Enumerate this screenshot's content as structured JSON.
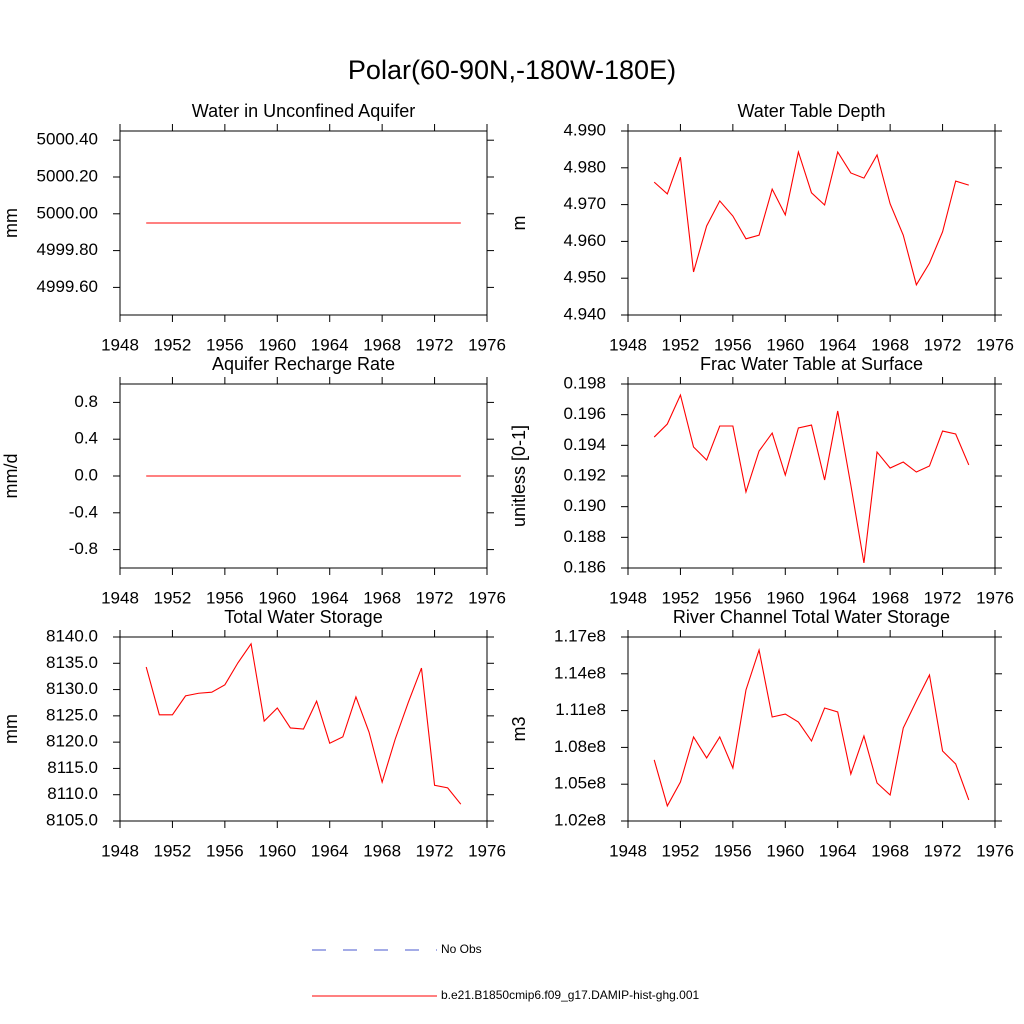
{
  "title": "Polar(60-90N,-180W-180E)",
  "legend": [
    {
      "name": "No Obs",
      "color": "#4a5acf",
      "line_style": "dashed"
    },
    {
      "name": "b.e21.B1850cmip6.f09_g17.DAMIP-hist-ghg.001",
      "color": "#ff0000",
      "line_style": "solid"
    }
  ],
  "chart_data": [
    {
      "type": "line",
      "title": "Water in Unconfined Aquifer",
      "y_label": "mm",
      "color": "#ff0000",
      "x": [
        1950,
        1951,
        1952,
        1953,
        1954,
        1955,
        1956,
        1957,
        1958,
        1959,
        1960,
        1961,
        1962,
        1963,
        1964,
        1965,
        1966,
        1967,
        1968,
        1969,
        1970,
        1971,
        1972,
        1973,
        1974
      ],
      "values": [
        4999.95,
        4999.95,
        4999.95,
        4999.95,
        4999.95,
        4999.95,
        4999.95,
        4999.95,
        4999.95,
        4999.95,
        4999.95,
        4999.95,
        4999.95,
        4999.95,
        4999.95,
        4999.95,
        4999.95,
        4999.95,
        4999.95,
        4999.95,
        4999.95,
        4999.95,
        4999.95,
        4999.95,
        4999.95
      ],
      "xlim": [
        1948,
        1976
      ],
      "xticks": [
        1948,
        1952,
        1956,
        1960,
        1964,
        1968,
        1972,
        1976
      ],
      "ylim": [
        4999.45,
        5000.45
      ],
      "yticks": [
        {
          "value": 4999.6,
          "label": "4999.60"
        },
        {
          "value": 4999.8,
          "label": "4999.80"
        },
        {
          "value": 5000,
          "label": "5000.00"
        },
        {
          "value": 5000.2,
          "label": "5000.20"
        },
        {
          "value": 5000.4,
          "label": "5000.40"
        }
      ]
    },
    {
      "type": "line",
      "title": "Water Table Depth",
      "y_label": "m",
      "color": "#ff0000",
      "x": [
        1950,
        1951,
        1952,
        1953,
        1954,
        1955,
        1956,
        1957,
        1958,
        1959,
        1960,
        1961,
        1962,
        1963,
        1964,
        1965,
        1966,
        1967,
        1968,
        1969,
        1970,
        1971,
        1972,
        1973,
        1974
      ],
      "values": [
        4.9761,
        4.9729,
        4.9829,
        4.9517,
        4.9642,
        4.971,
        4.9669,
        4.9607,
        4.9617,
        4.9742,
        4.9672,
        4.9843,
        4.9732,
        4.9699,
        4.9843,
        4.9786,
        4.9772,
        4.9835,
        4.9702,
        4.9617,
        4.9482,
        4.9541,
        4.9626,
        4.9764,
        4.9753
      ],
      "xlim": [
        1948,
        1976
      ],
      "xticks": [
        1948,
        1952,
        1956,
        1960,
        1964,
        1968,
        1972,
        1976
      ],
      "ylim": [
        4.94,
        4.99
      ],
      "yticks": [
        {
          "value": 4.94,
          "label": "4.940"
        },
        {
          "value": 4.95,
          "label": "4.950"
        },
        {
          "value": 4.96,
          "label": "4.960"
        },
        {
          "value": 4.97,
          "label": "4.970"
        },
        {
          "value": 4.98,
          "label": "4.980"
        },
        {
          "value": 4.99,
          "label": "4.990"
        }
      ]
    },
    {
      "type": "line",
      "title": "Aquifer Recharge Rate",
      "y_label": "mm/d",
      "color": "#ff0000",
      "x": [
        1950,
        1951,
        1952,
        1953,
        1954,
        1955,
        1956,
        1957,
        1958,
        1959,
        1960,
        1961,
        1962,
        1963,
        1964,
        1965,
        1966,
        1967,
        1968,
        1969,
        1970,
        1971,
        1972,
        1973,
        1974
      ],
      "values": [
        0,
        0,
        0,
        0,
        0,
        0,
        0,
        0,
        0,
        0,
        0,
        0,
        0,
        0,
        0,
        0,
        0,
        0,
        0,
        0,
        0,
        0,
        0,
        0,
        0
      ],
      "xlim": [
        1948,
        1976
      ],
      "xticks": [
        1948,
        1952,
        1956,
        1960,
        1964,
        1968,
        1972,
        1976
      ],
      "ylim": [
        -1,
        1
      ],
      "yticks": [
        -0.8,
        -0.4,
        {
          "value": 0,
          "label": "0.0"
        },
        0.4,
        0.8
      ]
    },
    {
      "type": "line",
      "title": "Frac Water Table at Surface",
      "y_label": "unitless [0-1]",
      "color": "#ff0000",
      "x": [
        1950,
        1951,
        1952,
        1953,
        1954,
        1955,
        1956,
        1957,
        1958,
        1959,
        1960,
        1961,
        1962,
        1963,
        1964,
        1965,
        1966,
        1967,
        1968,
        1969,
        1970,
        1971,
        1972,
        1973,
        1974
      ],
      "values": [
        0.19454,
        0.19539,
        0.19728,
        0.19389,
        0.19304,
        0.19526,
        0.19526,
        0.19096,
        0.19363,
        0.1948,
        0.19206,
        0.19513,
        0.19532,
        0.19174,
        0.19624,
        0.19141,
        0.18633,
        0.19356,
        0.19252,
        0.19291,
        0.19226,
        0.19265,
        0.19493,
        0.19474,
        0.19272
      ],
      "xlim": [
        1948,
        1976
      ],
      "xticks": [
        1948,
        1952,
        1956,
        1960,
        1964,
        1968,
        1972,
        1976
      ],
      "ylim": [
        0.186,
        0.198
      ],
      "yticks": [
        0.186,
        0.188,
        {
          "value": 0.19,
          "label": "0.190"
        },
        0.192,
        0.194,
        0.196,
        0.198
      ]
    },
    {
      "type": "line",
      "title": "Total Water Storage",
      "y_label": "mm",
      "color": "#ff0000",
      "x": [
        1950,
        1951,
        1952,
        1953,
        1954,
        1955,
        1956,
        1957,
        1958,
        1959,
        1960,
        1961,
        1962,
        1963,
        1964,
        1965,
        1966,
        1967,
        1968,
        1969,
        1970,
        1971,
        1972,
        1973,
        1974
      ],
      "values": [
        8134.3,
        8125.2,
        8125.2,
        8128.8,
        8129.3,
        8129.5,
        8130.9,
        8135.1,
        8138.7,
        8124.0,
        8126.5,
        8122.7,
        8122.5,
        8127.8,
        8119.8,
        8121.0,
        8128.6,
        8121.9,
        8112.4,
        8120.6,
        8127.6,
        8134.1,
        8111.8,
        8111.3,
        8108.2
      ],
      "xlim": [
        1948,
        1976
      ],
      "xticks": [
        1948,
        1952,
        1956,
        1960,
        1964,
        1968,
        1972,
        1976
      ],
      "ylim": [
        8105,
        8140
      ],
      "yticks": [
        {
          "value": 8105,
          "label": "8105.0"
        },
        {
          "value": 8110,
          "label": "8110.0"
        },
        {
          "value": 8115,
          "label": "8115.0"
        },
        {
          "value": 8120,
          "label": "8120.0"
        },
        {
          "value": 8125,
          "label": "8125.0"
        },
        {
          "value": 8130,
          "label": "8130.0"
        },
        {
          "value": 8135,
          "label": "8135.0"
        },
        {
          "value": 8140,
          "label": "8140.0"
        }
      ]
    },
    {
      "type": "line",
      "title": "River Channel Total Water Storage",
      "y_label": "m3",
      "color": "#ff0000",
      "x": [
        1950,
        1951,
        1952,
        1953,
        1954,
        1955,
        1956,
        1957,
        1958,
        1959,
        1960,
        1961,
        1962,
        1963,
        1964,
        1965,
        1966,
        1967,
        1968,
        1969,
        1970,
        1971,
        1972,
        1973,
        1974
      ],
      "values": [
        106980000,
        103230000,
        105180000,
        108850000,
        107140000,
        108850000,
        106320000,
        112680000,
        115940000,
        110480000,
        110720000,
        110070000,
        108520000,
        111210000,
        110890000,
        105830000,
        108930000,
        105100000,
        104120000,
        109580000,
        111780000,
        113900000,
        107710000,
        106650000,
        103720000
      ],
      "xlim": [
        1948,
        1976
      ],
      "xticks": [
        1948,
        1952,
        1956,
        1960,
        1964,
        1968,
        1972,
        1976
      ],
      "ylim": [
        102000000,
        117000000
      ],
      "yticks": [
        {
          "value": 102000000,
          "label": "1.02e8"
        },
        {
          "value": 105000000,
          "label": "1.05e8"
        },
        {
          "value": 108000000,
          "label": "1.08e8"
        },
        {
          "value": 111000000,
          "label": "1.11e8"
        },
        {
          "value": 114000000,
          "label": "1.14e8"
        },
        {
          "value": 117000000,
          "label": "1.17e8"
        }
      ]
    }
  ]
}
